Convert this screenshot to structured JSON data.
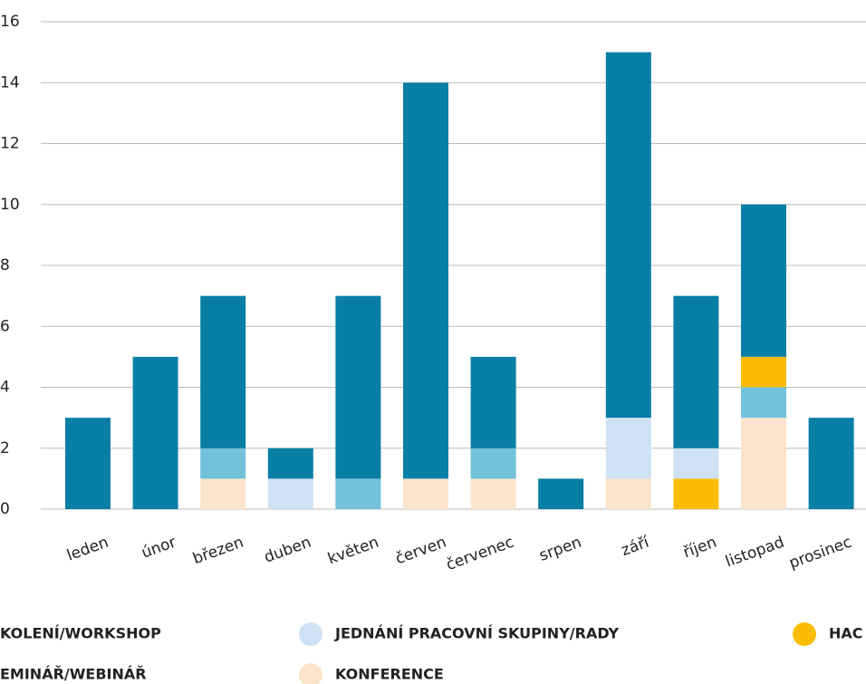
{
  "chart_data": {
    "type": "stacked_bar",
    "categories": [
      "leden",
      "únor",
      "březen",
      "duben",
      "květen",
      "červen",
      "červenec",
      "srpen",
      "září",
      "říjen",
      "listopad",
      "prosinec"
    ],
    "series": [
      {
        "name": "KOLENÍ/WORKSHOP",
        "color": "#72c2dc",
        "values": [
          0,
          0,
          1,
          0,
          1,
          0,
          1,
          0,
          0,
          0,
          1,
          0
        ]
      },
      {
        "name": "JEDNÁNÍ PRACOVNÍ SKUPINY/RADY",
        "color": "#cfe2f3",
        "values": [
          0,
          0,
          0,
          1,
          0,
          0,
          0,
          0,
          2,
          1,
          0,
          0
        ]
      },
      {
        "name": "HAC",
        "color": "#fbbc05",
        "values": [
          0,
          0,
          0,
          0,
          0,
          0,
          0,
          0,
          0,
          1,
          1,
          0
        ]
      },
      {
        "name": "EMINÁŘ/WEBINÁŘ",
        "color": "#0a7fa6",
        "values": [
          3,
          5,
          5,
          1,
          6,
          13,
          3,
          1,
          12,
          5,
          5,
          3
        ]
      },
      {
        "name": "KONFERENCE",
        "color": "#fce4cc",
        "values": [
          0,
          0,
          1,
          0,
          0,
          1,
          1,
          0,
          1,
          0,
          3,
          0
        ]
      }
    ],
    "ylim": [
      0,
      16
    ],
    "yticks": [
      0,
      2,
      4,
      6,
      8,
      10,
      12,
      14,
      16
    ],
    "grid": true
  }
}
